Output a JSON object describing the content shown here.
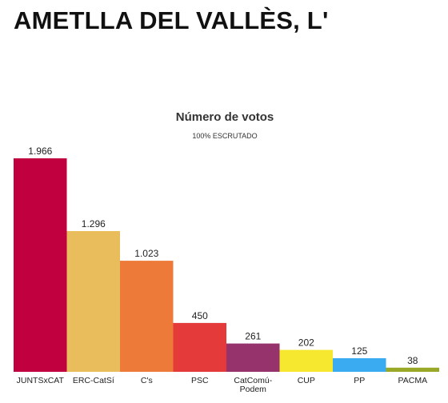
{
  "page": {
    "title": "AMETLLA DEL VALLÈS, L'"
  },
  "chart_data": {
    "type": "bar",
    "title": "Número de votos",
    "subtitle": "100% ESCRUTADO",
    "categories": [
      "JUNTSxCAT",
      "ERC-CatSí",
      "C's",
      "PSC",
      "CatComú-Podem",
      "CUP",
      "PP",
      "PACMA"
    ],
    "category_lines": [
      [
        "JUNTSxCAT"
      ],
      [
        "ERC-CatSí"
      ],
      [
        "C's"
      ],
      [
        "PSC"
      ],
      [
        "CatComú-",
        "Podem"
      ],
      [
        "CUP"
      ],
      [
        "PP"
      ],
      [
        "PACMA"
      ]
    ],
    "values": [
      1966,
      1296,
      1023,
      450,
      261,
      202,
      125,
      38
    ],
    "value_labels": [
      "1.966",
      "1.296",
      "1.023",
      "450",
      "261",
      "202",
      "125",
      "38"
    ],
    "colors": [
      "#c1003f",
      "#e9bd5b",
      "#ed7a38",
      "#e53a3a",
      "#96336d",
      "#f6e72f",
      "#3aabf0",
      "#9aa827"
    ],
    "ylim": [
      0,
      1966
    ],
    "grid": false,
    "legend": "none"
  }
}
